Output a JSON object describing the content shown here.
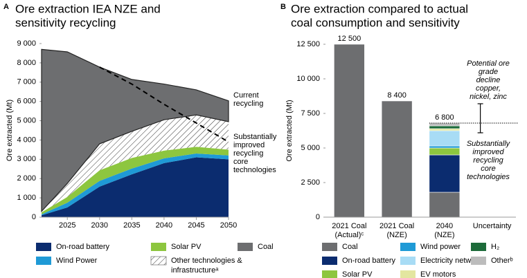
{
  "chart_data": [
    {
      "type": "area",
      "panel": "A",
      "title": [
        "Ore extraction IEA NZE and",
        "sensitivity recycling"
      ],
      "ylabel": "Ore extracted (Mt)",
      "x": [
        2021,
        2025,
        2030,
        2035,
        2040,
        2045,
        2050
      ],
      "xlim": [
        2021,
        2050
      ],
      "xticks": [
        2025,
        2030,
        2035,
        2040,
        2045,
        2050
      ],
      "ylim": [
        0,
        9000
      ],
      "yticks": [
        0,
        {
          "value": 1000,
          "label": "1 000"
        },
        {
          "value": 2000,
          "label": "2 000"
        },
        {
          "value": 3000,
          "label": "3 000"
        },
        {
          "value": 4000,
          "label": "4 000"
        },
        {
          "value": 5000,
          "label": "5 000"
        },
        {
          "value": 6000,
          "label": "6 000"
        },
        {
          "value": 7000,
          "label": "7 000"
        },
        {
          "value": 8000,
          "label": "8 000"
        },
        {
          "value": 9000,
          "label": "9 000"
        }
      ],
      "series": [
        {
          "name": "On-road battery",
          "color": "#0b2c6f",
          "values": [
            100,
            500,
            1580,
            2220,
            2800,
            3100,
            3000
          ]
        },
        {
          "name": "Wind Power",
          "color": "#1f9ad6",
          "values": [
            50,
            250,
            300,
            300,
            250,
            200,
            200
          ]
        },
        {
          "name": "Solar PV",
          "color": "#8dc63f",
          "values": [
            100,
            300,
            550,
            550,
            400,
            350,
            300
          ]
        },
        {
          "name": "Other technologies & infrastructureᵃ",
          "color": "#333333",
          "pattern": "hatch",
          "values": [
            50,
            700,
            1370,
            1380,
            1600,
            1650,
            1450
          ]
        },
        {
          "name": "Coal",
          "color": "#6d6e70",
          "values": [
            8400,
            6820,
            3980,
            2690,
            1850,
            1300,
            1080
          ]
        }
      ],
      "dashed_line": {
        "color": "#000000",
        "style": "dashed",
        "values": [
          null,
          null,
          7780,
          6900,
          5850,
          4880,
          3900
        ]
      },
      "annotations": [
        {
          "lines": [
            "Current",
            "recycling"
          ]
        },
        {
          "lines": [
            "Substantially",
            "improved",
            "recycling",
            "core",
            "technologies"
          ]
        }
      ]
    },
    {
      "type": "bar",
      "panel": "B",
      "title": [
        "Ore extraction compared to actual",
        "coal consumption and sensitivity"
      ],
      "ylabel": "Ore extracted (Mt)",
      "categories": [
        [
          "2021 Coal",
          "(Actual)ᶜ"
        ],
        [
          "2021 Coal",
          "(NZE)"
        ],
        [
          "2040",
          "(NZE)"
        ],
        [
          "Uncertainty"
        ]
      ],
      "ylim": [
        0,
        12500
      ],
      "yticks": [
        0,
        {
          "value": 2500,
          "label": "2 500"
        },
        {
          "value": 5000,
          "label": "5 000"
        },
        {
          "value": 7500,
          "label": "7 500"
        },
        {
          "value": 10000,
          "label": "10 000"
        },
        {
          "value": 12500,
          "label": "12 500"
        }
      ],
      "series": [
        {
          "name": "Coal",
          "color": "#6d6e70",
          "values": [
            12500,
            8400,
            1800,
            null
          ]
        },
        {
          "name": "On-road battery",
          "color": "#0b2c6f",
          "values": [
            null,
            null,
            2700,
            null
          ]
        },
        {
          "name": "Solar PV",
          "color": "#8dc63f",
          "values": [
            null,
            null,
            500,
            null
          ]
        },
        {
          "name": "Wind power",
          "color": "#1f9ad6",
          "values": [
            null,
            null,
            150,
            null
          ]
        },
        {
          "name": "Electricity networks",
          "color": "#a8dcf5",
          "values": [
            null,
            null,
            1100,
            null
          ]
        },
        {
          "name": "EV motors",
          "color": "#e3e6a0",
          "values": [
            null,
            null,
            150,
            null
          ]
        },
        {
          "name": "H₂",
          "color": "#1d6b3a",
          "values": [
            null,
            null,
            200,
            null
          ]
        },
        {
          "name": "Otherᵇ",
          "color": "#bcbcbc",
          "values": [
            null,
            null,
            200,
            null
          ]
        }
      ],
      "totals": [
        12500,
        8400,
        6800,
        null
      ],
      "total_labels": [
        "12 500",
        "8 400",
        "6 800",
        null
      ],
      "error_bar": {
        "category": 3,
        "value": 6800,
        "plus": 1400,
        "minus": 700,
        "color": "#000000"
      },
      "reference_line": {
        "value": 6800,
        "style": "dotted",
        "color": "#000000"
      },
      "annotations": [
        {
          "lines": [
            "Potential ore",
            "grade",
            "decline",
            "copper,",
            "nickel, zinc"
          ]
        },
        {
          "lines": [
            "Substantially",
            "improved",
            "recycling",
            "core",
            "technologies"
          ]
        }
      ]
    }
  ]
}
